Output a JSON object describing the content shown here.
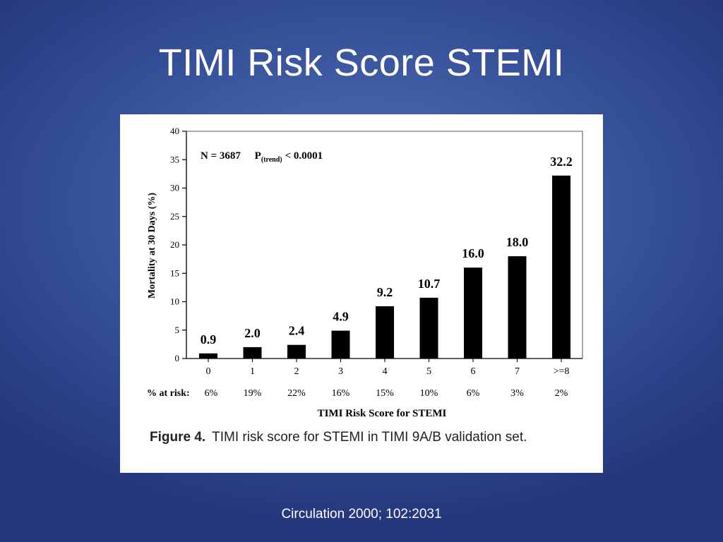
{
  "slide": {
    "title": "TIMI Risk Score STEMI",
    "citation": "Circulation 2000; 102:2031"
  },
  "chart_data": {
    "type": "bar",
    "title": "",
    "annotation": {
      "n": "N = 3687",
      "p_label": "P",
      "p_sub": "(trend)",
      "p_value": "< 0.0001"
    },
    "categories": [
      "0",
      "1",
      "2",
      "3",
      "4",
      "5",
      "6",
      "7",
      ">=8"
    ],
    "values": [
      0.9,
      2.0,
      2.4,
      4.9,
      9.2,
      10.7,
      16.0,
      18.0,
      32.2
    ],
    "value_labels": [
      "0.9",
      "2.0",
      "2.4",
      "4.9",
      "9.2",
      "10.7",
      "16.0",
      "18.0",
      "32.2"
    ],
    "at_risk_label": "% at risk:",
    "at_risk": [
      "6%",
      "19%",
      "22%",
      "16%",
      "15%",
      "10%",
      "6%",
      "3%",
      "2%"
    ],
    "ylabel": "Mortality at 30 Days (%)",
    "xlabel": "TIMI Risk Score for STEMI",
    "ylim": [
      0,
      40
    ],
    "yticks": [
      0,
      5,
      10,
      15,
      20,
      25,
      30,
      35,
      40
    ],
    "caption_bold": "Figure 4.",
    "caption_text": "TIMI risk score for STEMI in TIMI 9A/B validation set.",
    "colors": {
      "bar": "#000000"
    }
  }
}
